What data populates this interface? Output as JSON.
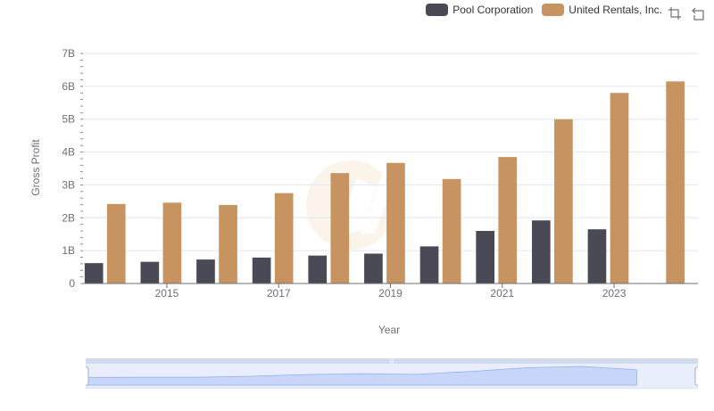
{
  "legend": {
    "items": [
      {
        "label": "Pool Corporation",
        "color": "#4a4a56"
      },
      {
        "label": "United Rentals, Inc.",
        "color": "#c69361"
      }
    ]
  },
  "toolbox": {
    "icons": [
      "zoom-select-icon",
      "zoom-reset-icon"
    ]
  },
  "chart_data": {
    "type": "bar",
    "xlabel": "Year",
    "ylabel": "Gross Profit",
    "ylim": [
      0,
      7000000000
    ],
    "yticks": [
      "0",
      "1B",
      "2B",
      "3B",
      "4B",
      "5B",
      "6B",
      "7B"
    ],
    "xtick_labels": [
      "2015",
      "2017",
      "2019",
      "2021",
      "2023"
    ],
    "categories": [
      "2014",
      "2015",
      "2016",
      "2017",
      "2018",
      "2019",
      "2020",
      "2021",
      "2022",
      "2023",
      "2024"
    ],
    "series": [
      {
        "name": "Pool Corporation",
        "color": "#4a4a56",
        "values": [
          620000000,
          660000000,
          730000000,
          790000000,
          850000000,
          910000000,
          1130000000,
          1600000000,
          1920000000,
          1650000000,
          null
        ]
      },
      {
        "name": "United Rentals, Inc.",
        "color": "#c69361",
        "values": [
          2420000000,
          2460000000,
          2390000000,
          2750000000,
          3360000000,
          3670000000,
          3180000000,
          3850000000,
          5000000000,
          5800000000,
          6150000000
        ]
      }
    ],
    "grid": true,
    "legend_position": "top-right",
    "data_zoom": {
      "start_percent": 0,
      "end_percent": 100
    }
  }
}
